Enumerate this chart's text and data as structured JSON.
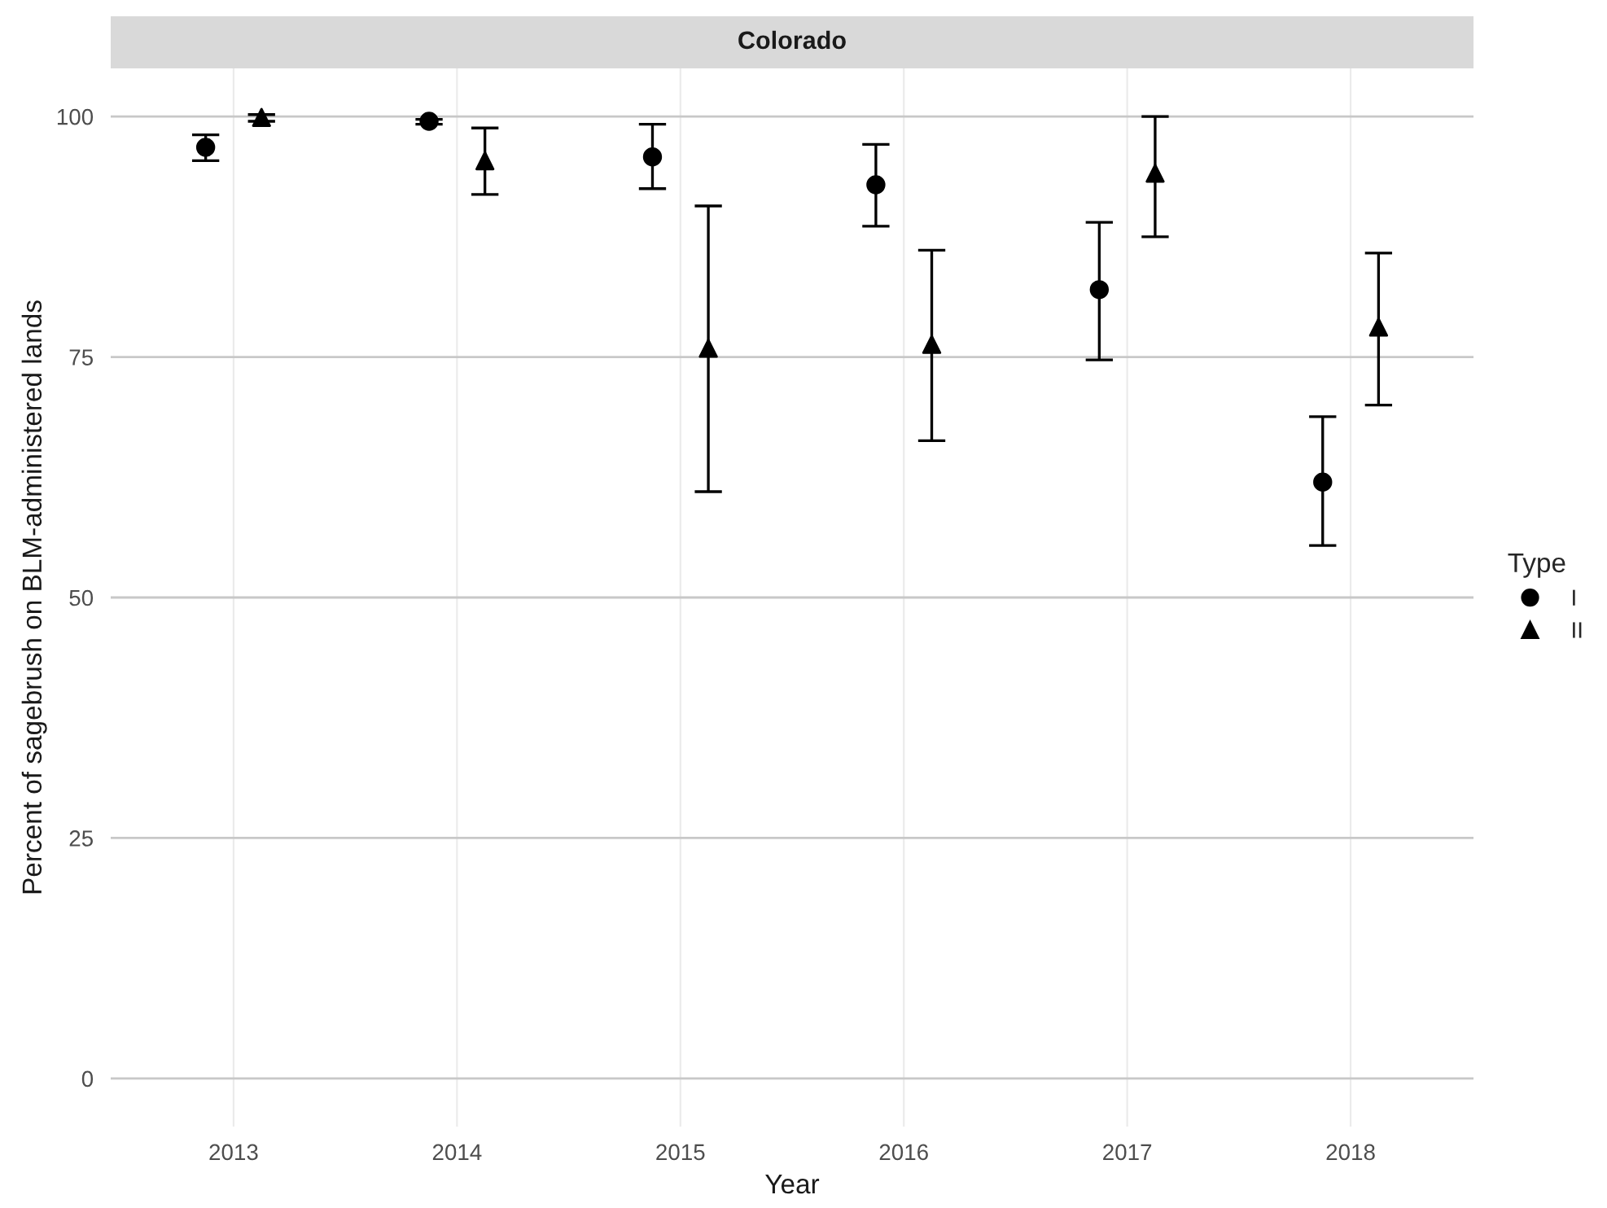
{
  "chart_data": {
    "type": "scatter",
    "title": "Colorado",
    "xlabel": "Year",
    "ylabel": "Percent of sagebrush on BLM-administered lands",
    "legend_title": "Type",
    "categories": [
      "2013",
      "2014",
      "2015",
      "2016",
      "2017",
      "2018"
    ],
    "series": [
      {
        "name": "I",
        "color": "#000000",
        "marker": "circle",
        "values": [
          96.8,
          99.5,
          95.8,
          92.9,
          82.0,
          62.0
        ],
        "errors": [
          [
            95.4,
            98.1
          ],
          [
            99.2,
            99.7
          ],
          [
            92.5,
            99.2
          ],
          [
            88.6,
            97.1
          ],
          [
            74.7,
            89.0
          ],
          [
            55.4,
            68.8
          ]
        ]
      },
      {
        "name": "II",
        "color": "#000000",
        "marker": "triangle",
        "values": [
          99.9,
          95.4,
          75.9,
          76.3,
          94.1,
          78.1
        ],
        "errors": [
          [
            99.5,
            100.2
          ],
          [
            91.9,
            98.8
          ],
          [
            61.0,
            90.7
          ],
          [
            66.3,
            86.1
          ],
          [
            87.5,
            100.0
          ],
          [
            70.0,
            85.8
          ]
        ]
      }
    ],
    "ylim": [
      -5,
      105
    ],
    "yticks": [
      0,
      25,
      50,
      75,
      100
    ],
    "grid": true,
    "legend": "right"
  }
}
